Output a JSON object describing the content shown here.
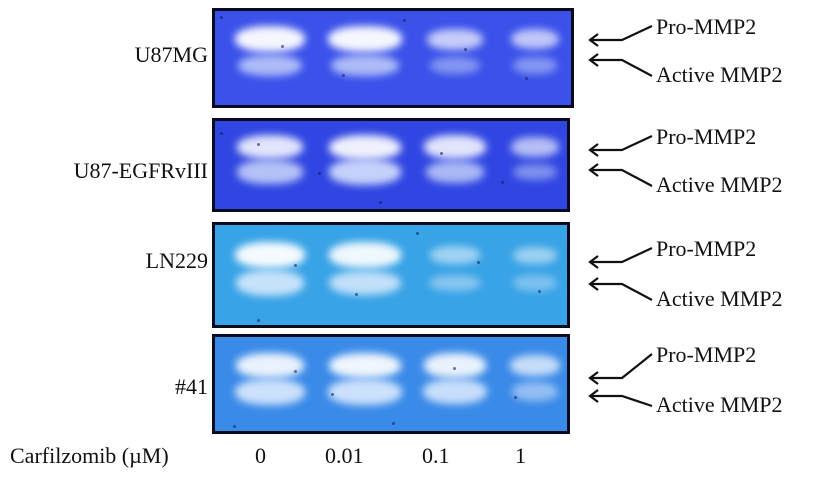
{
  "figure": {
    "axis_title": "Carfilzomib (µM)",
    "concentrations": [
      "0",
      "0.01",
      "0.1",
      "1"
    ],
    "rows": [
      {
        "label": "U87MG",
        "gel_color": "#3a51ea",
        "pro_label": "Pro-MMP2",
        "active_label": "Active MMP2",
        "pro_intensity": [
          1.0,
          1.0,
          0.6,
          0.55
        ],
        "active_intensity": [
          0.7,
          0.7,
          0.3,
          0.3
        ]
      },
      {
        "label": "U87-EGFRvIII",
        "gel_color": "#3046e2",
        "pro_label": "Pro-MMP2",
        "active_label": "Active MMP2",
        "pro_intensity": [
          0.85,
          0.95,
          0.85,
          0.5
        ],
        "active_intensity": [
          0.8,
          0.95,
          0.7,
          0.3
        ]
      },
      {
        "label": "LN229",
        "gel_color": "#38a3e6",
        "pro_label": "Pro-MMP2",
        "active_label": "Active MMP2",
        "pro_intensity": [
          1.0,
          0.95,
          0.3,
          0.25
        ],
        "active_intensity": [
          0.95,
          0.9,
          0.35,
          0.25
        ]
      },
      {
        "label": "#41",
        "gel_color": "#3a8ae8",
        "pro_label": "Pro-MMP2",
        "active_label": "Active MMP2",
        "pro_intensity": [
          0.9,
          0.95,
          0.9,
          0.6
        ],
        "active_intensity": [
          1.0,
          1.0,
          0.95,
          0.45
        ]
      }
    ]
  }
}
